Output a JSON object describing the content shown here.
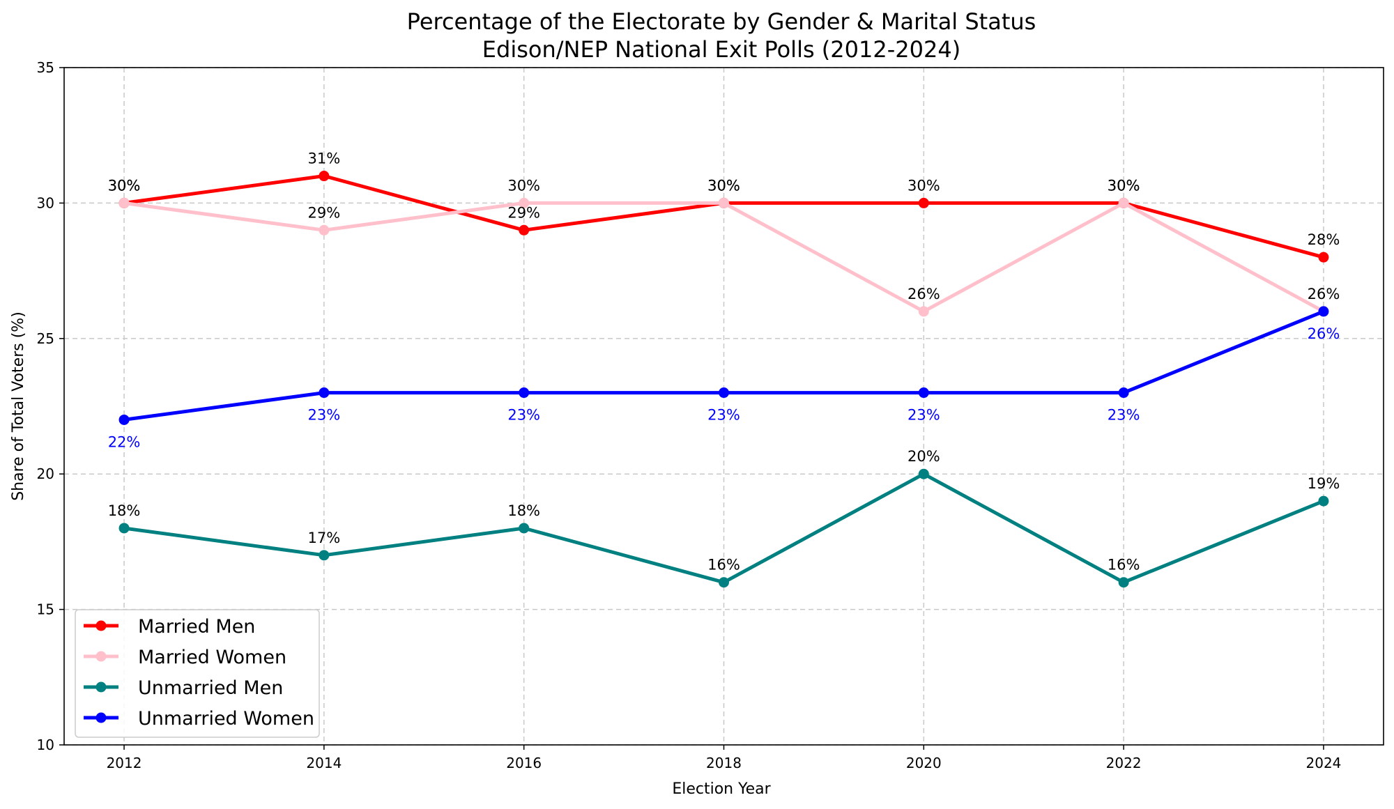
{
  "chart_data": {
    "type": "line",
    "title": "Percentage of the Electorate by Gender & Marital Status",
    "subtitle": "Edison/NEP National Exit Polls (2012-2024)",
    "xlabel": "Election Year",
    "ylabel": "Share of Total Voters (%)",
    "x": [
      2012,
      2014,
      2016,
      2018,
      2020,
      2022,
      2024
    ],
    "x_tick_labels": [
      "2012",
      "2014",
      "2016",
      "2018",
      "2020",
      "2022",
      "2024"
    ],
    "xlim": [
      2011.4,
      2024.6
    ],
    "ylim": [
      10,
      35
    ],
    "y_ticks": [
      10,
      15,
      20,
      25,
      30,
      35
    ],
    "y_tick_labels": [
      "10",
      "15",
      "20",
      "25",
      "30",
      "35"
    ],
    "grid": true,
    "legend_position": "lower-left",
    "series": [
      {
        "name": "Married Men",
        "color": "#ff0000",
        "values": [
          30,
          31,
          29,
          30,
          30,
          30,
          28
        ],
        "labels": [
          "30%",
          "31%",
          "29%",
          "30%",
          "30%",
          "30%",
          "28%"
        ],
        "label_color": "#000000",
        "label_position": "above"
      },
      {
        "name": "Married Women",
        "color": "#ffc0cb",
        "values": [
          30,
          29,
          30,
          30,
          26,
          30,
          26
        ],
        "labels": [
          "30%",
          "29%",
          "30%",
          "30%",
          "26%",
          "30%",
          "26%"
        ],
        "label_color": "#000000",
        "label_position": "above"
      },
      {
        "name": "Unmarried Men",
        "color": "#008080",
        "values": [
          18,
          17,
          18,
          16,
          20,
          16,
          19
        ],
        "labels": [
          "18%",
          "17%",
          "18%",
          "16%",
          "20%",
          "16%",
          "19%"
        ],
        "label_color": "#000000",
        "label_position": "above"
      },
      {
        "name": "Unmarried Women",
        "color": "#0000ff",
        "values": [
          22,
          23,
          23,
          23,
          23,
          23,
          26
        ],
        "labels": [
          "22%",
          "23%",
          "23%",
          "23%",
          "23%",
          "23%",
          "26%"
        ],
        "label_color": "#0000ff",
        "label_position": "below"
      }
    ]
  }
}
